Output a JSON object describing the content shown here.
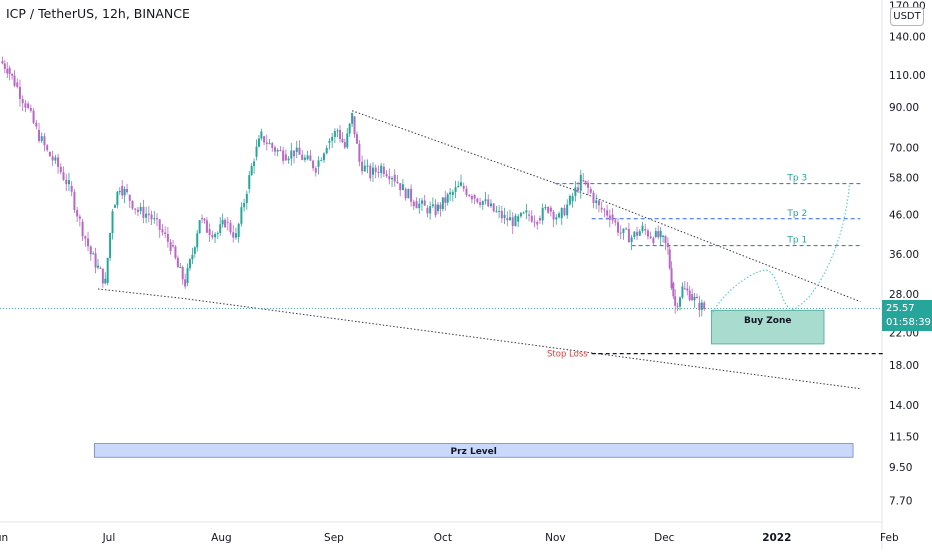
{
  "header": {
    "title": "ICP / TetherUS, 12h, BINANCE",
    "currency": "USDT"
  },
  "price_tag": {
    "price": "25.57",
    "countdown": "01:58:39"
  },
  "colors": {
    "up": "#26a69a",
    "down": "#b967c7",
    "level_line": "#2962ff",
    "level_text": "#26a69a",
    "stop_loss": "#e53935",
    "buy_zone_fill": "#a8dccf",
    "prz_fill": "#c9d8fb",
    "projection": "#4dd0c0"
  },
  "chart_data": {
    "type": "candlestick",
    "xaxis": {
      "ticks": [
        "Jun",
        "Jul",
        "Aug",
        "Sep",
        "Oct",
        "Nov",
        "Dec",
        "2022",
        "Feb"
      ],
      "range": [
        "2021-06-01",
        "2022-02-28"
      ]
    },
    "yaxis": {
      "scale": "log",
      "ticks": [
        "170.00",
        "140.00",
        "110.00",
        "90.00",
        "70.00",
        "58.00",
        "46.00",
        "36.00",
        "28.00",
        "22.00",
        "18.00",
        "14.00",
        "11.50",
        "9.50",
        "7.70"
      ],
      "range": [
        6.8,
        175
      ]
    },
    "series": [
      {
        "type": "candle",
        "points": [
          {
            "t": "2021-06-01",
            "c": 120
          },
          {
            "t": "2021-06-03",
            "c": 115
          },
          {
            "t": "2021-06-05",
            "c": 105
          },
          {
            "t": "2021-06-08",
            "c": 92
          },
          {
            "t": "2021-06-11",
            "c": 78
          },
          {
            "t": "2021-06-14",
            "c": 68
          },
          {
            "t": "2021-06-17",
            "c": 62
          },
          {
            "t": "2021-06-20",
            "c": 55
          },
          {
            "t": "2021-06-23",
            "c": 44
          },
          {
            "t": "2021-06-26",
            "c": 36
          },
          {
            "t": "2021-06-28",
            "c": 33
          },
          {
            "t": "2021-06-30",
            "c": 30
          },
          {
            "t": "2021-07-02",
            "c": 48
          },
          {
            "t": "2021-07-04",
            "c": 55
          },
          {
            "t": "2021-07-06",
            "c": 52
          },
          {
            "t": "2021-07-09",
            "c": 47
          },
          {
            "t": "2021-07-12",
            "c": 46
          },
          {
            "t": "2021-07-15",
            "c": 42
          },
          {
            "t": "2021-07-18",
            "c": 38
          },
          {
            "t": "2021-07-20",
            "c": 33
          },
          {
            "t": "2021-07-22",
            "c": 30
          },
          {
            "t": "2021-07-24",
            "c": 36
          },
          {
            "t": "2021-07-26",
            "c": 45
          },
          {
            "t": "2021-07-28",
            "c": 42
          },
          {
            "t": "2021-07-31",
            "c": 41
          },
          {
            "t": "2021-08-02",
            "c": 44
          },
          {
            "t": "2021-08-05",
            "c": 40
          },
          {
            "t": "2021-08-08",
            "c": 54
          },
          {
            "t": "2021-08-10",
            "c": 66
          },
          {
            "t": "2021-08-12",
            "c": 75
          },
          {
            "t": "2021-08-15",
            "c": 70
          },
          {
            "t": "2021-08-18",
            "c": 67
          },
          {
            "t": "2021-08-21",
            "c": 68
          },
          {
            "t": "2021-08-24",
            "c": 65
          },
          {
            "t": "2021-08-27",
            "c": 62
          },
          {
            "t": "2021-08-30",
            "c": 72
          },
          {
            "t": "2021-09-02",
            "c": 78
          },
          {
            "t": "2021-09-04",
            "c": 70
          },
          {
            "t": "2021-09-06",
            "c": 85
          },
          {
            "t": "2021-09-08",
            "c": 64
          },
          {
            "t": "2021-09-11",
            "c": 59
          },
          {
            "t": "2021-09-14",
            "c": 62
          },
          {
            "t": "2021-09-17",
            "c": 59
          },
          {
            "t": "2021-09-20",
            "c": 54
          },
          {
            "t": "2021-09-23",
            "c": 50
          },
          {
            "t": "2021-09-26",
            "c": 48
          },
          {
            "t": "2021-09-29",
            "c": 47
          },
          {
            "t": "2021-10-03",
            "c": 52
          },
          {
            "t": "2021-10-06",
            "c": 55
          },
          {
            "t": "2021-10-09",
            "c": 52
          },
          {
            "t": "2021-10-12",
            "c": 50
          },
          {
            "t": "2021-10-15",
            "c": 47
          },
          {
            "t": "2021-10-18",
            "c": 45
          },
          {
            "t": "2021-10-21",
            "c": 44
          },
          {
            "t": "2021-10-24",
            "c": 46
          },
          {
            "t": "2021-10-27",
            "c": 45
          },
          {
            "t": "2021-10-30",
            "c": 48
          },
          {
            "t": "2021-11-02",
            "c": 45
          },
          {
            "t": "2021-11-05",
            "c": 50
          },
          {
            "t": "2021-11-08",
            "c": 57
          },
          {
            "t": "2021-11-10",
            "c": 54
          },
          {
            "t": "2021-11-13",
            "c": 48
          },
          {
            "t": "2021-11-16",
            "c": 46
          },
          {
            "t": "2021-11-19",
            "c": 41
          },
          {
            "t": "2021-11-22",
            "c": 40
          },
          {
            "t": "2021-11-25",
            "c": 42
          },
          {
            "t": "2021-11-28",
            "c": 40
          },
          {
            "t": "2021-11-30",
            "c": 40
          },
          {
            "t": "2021-12-02",
            "c": 37
          },
          {
            "t": "2021-12-03",
            "c": 30
          },
          {
            "t": "2021-12-04",
            "c": 26
          },
          {
            "t": "2021-12-06",
            "c": 29
          },
          {
            "t": "2021-12-08",
            "c": 28
          },
          {
            "t": "2021-12-10",
            "c": 26.5
          },
          {
            "t": "2021-12-12",
            "c": 25.57
          }
        ]
      },
      {
        "name": "Buy Zone",
        "type": "zone",
        "x": [
          "2021-12-14",
          "2022-01-14"
        ],
        "y": [
          20.5,
          25.3
        ]
      },
      {
        "name": "Prz Level",
        "type": "zone",
        "x": [
          "2021-06-27",
          "2022-01-22"
        ],
        "y": [
          10.1,
          11.0
        ]
      },
      {
        "name": "Tp 3",
        "type": "level",
        "y": 55.8,
        "x": [
          "2021-11-01",
          "2022-01-24"
        ]
      },
      {
        "name": "Tp 2",
        "type": "level",
        "y": 44.8,
        "x": [
          "2021-11-11",
          "2022-01-24"
        ]
      },
      {
        "name": "Tp 1",
        "type": "level",
        "y": 37.9,
        "x": [
          "2021-11-22",
          "2022-01-24"
        ]
      },
      {
        "name": "Stop Loss",
        "type": "level",
        "y": 19.3,
        "x": [
          "2021-11-11",
          "2022-01-31"
        ]
      },
      {
        "type": "line",
        "x": [
          "2021-06-28",
          "2021-07-22",
          "2022-01-24"
        ],
        "y": [
          28.9,
          27.2,
          15.5
        ]
      },
      {
        "type": "line",
        "x": [
          "2021-09-06",
          "2021-11-10",
          "2022-01-24"
        ],
        "y": [
          88,
          52,
          26.7
        ]
      },
      {
        "type": "projection",
        "x": [
          "2021-12-14",
          "2021-12-29",
          "2022-01-07",
          "2022-01-21"
        ],
        "y": [
          24.5,
          32.5,
          26.0,
          56.0
        ]
      }
    ],
    "last_price": 25.57
  }
}
